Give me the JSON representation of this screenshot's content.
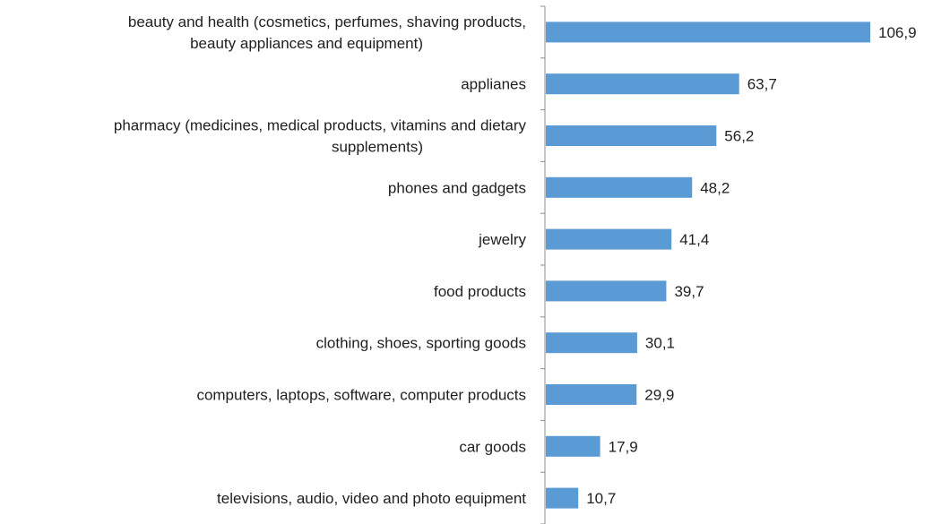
{
  "chart_data": {
    "type": "bar",
    "orientation": "horizontal",
    "title": "",
    "xlabel": "",
    "ylabel": "",
    "grid": false,
    "legend": "none",
    "bar_color": "#5b9bd5",
    "xlim": [
      0,
      110
    ],
    "categories": [
      "beauty and health (cosmetics, perfumes, shaving products, beauty appliances and equipment)",
      "applianes",
      "pharmacy (medicines, medical products, vitamins and dietary supplements)",
      "phones and gadgets",
      "jewelry",
      "food products",
      "clothing, shoes, sporting goods",
      "computers, laptops, software, computer products",
      "car goods",
      "televisions, audio, video and photo equipment"
    ],
    "category_lines": [
      [
        "beauty and health (cosmetics, perfumes, shaving products,",
        "beauty appliances and equipment)"
      ],
      [
        "applianes"
      ],
      [
        "pharmacy (medicines, medical products, vitamins and dietary",
        "supplements)"
      ],
      [
        "phones and gadgets"
      ],
      [
        "jewelry"
      ],
      [
        "food products"
      ],
      [
        "clothing, shoes, sporting goods"
      ],
      [
        "computers, laptops, software, computer products"
      ],
      [
        "car goods"
      ],
      [
        "televisions, audio, video and photo equipment"
      ]
    ],
    "values": [
      106.9,
      63.7,
      56.2,
      48.2,
      41.4,
      39.7,
      30.1,
      29.9,
      17.9,
      10.7
    ],
    "value_labels": [
      "106,9",
      "63,7",
      "56,2",
      "48,2",
      "41,4",
      "39,7",
      "30,1",
      "29,9",
      "17,9",
      "10,7"
    ]
  }
}
